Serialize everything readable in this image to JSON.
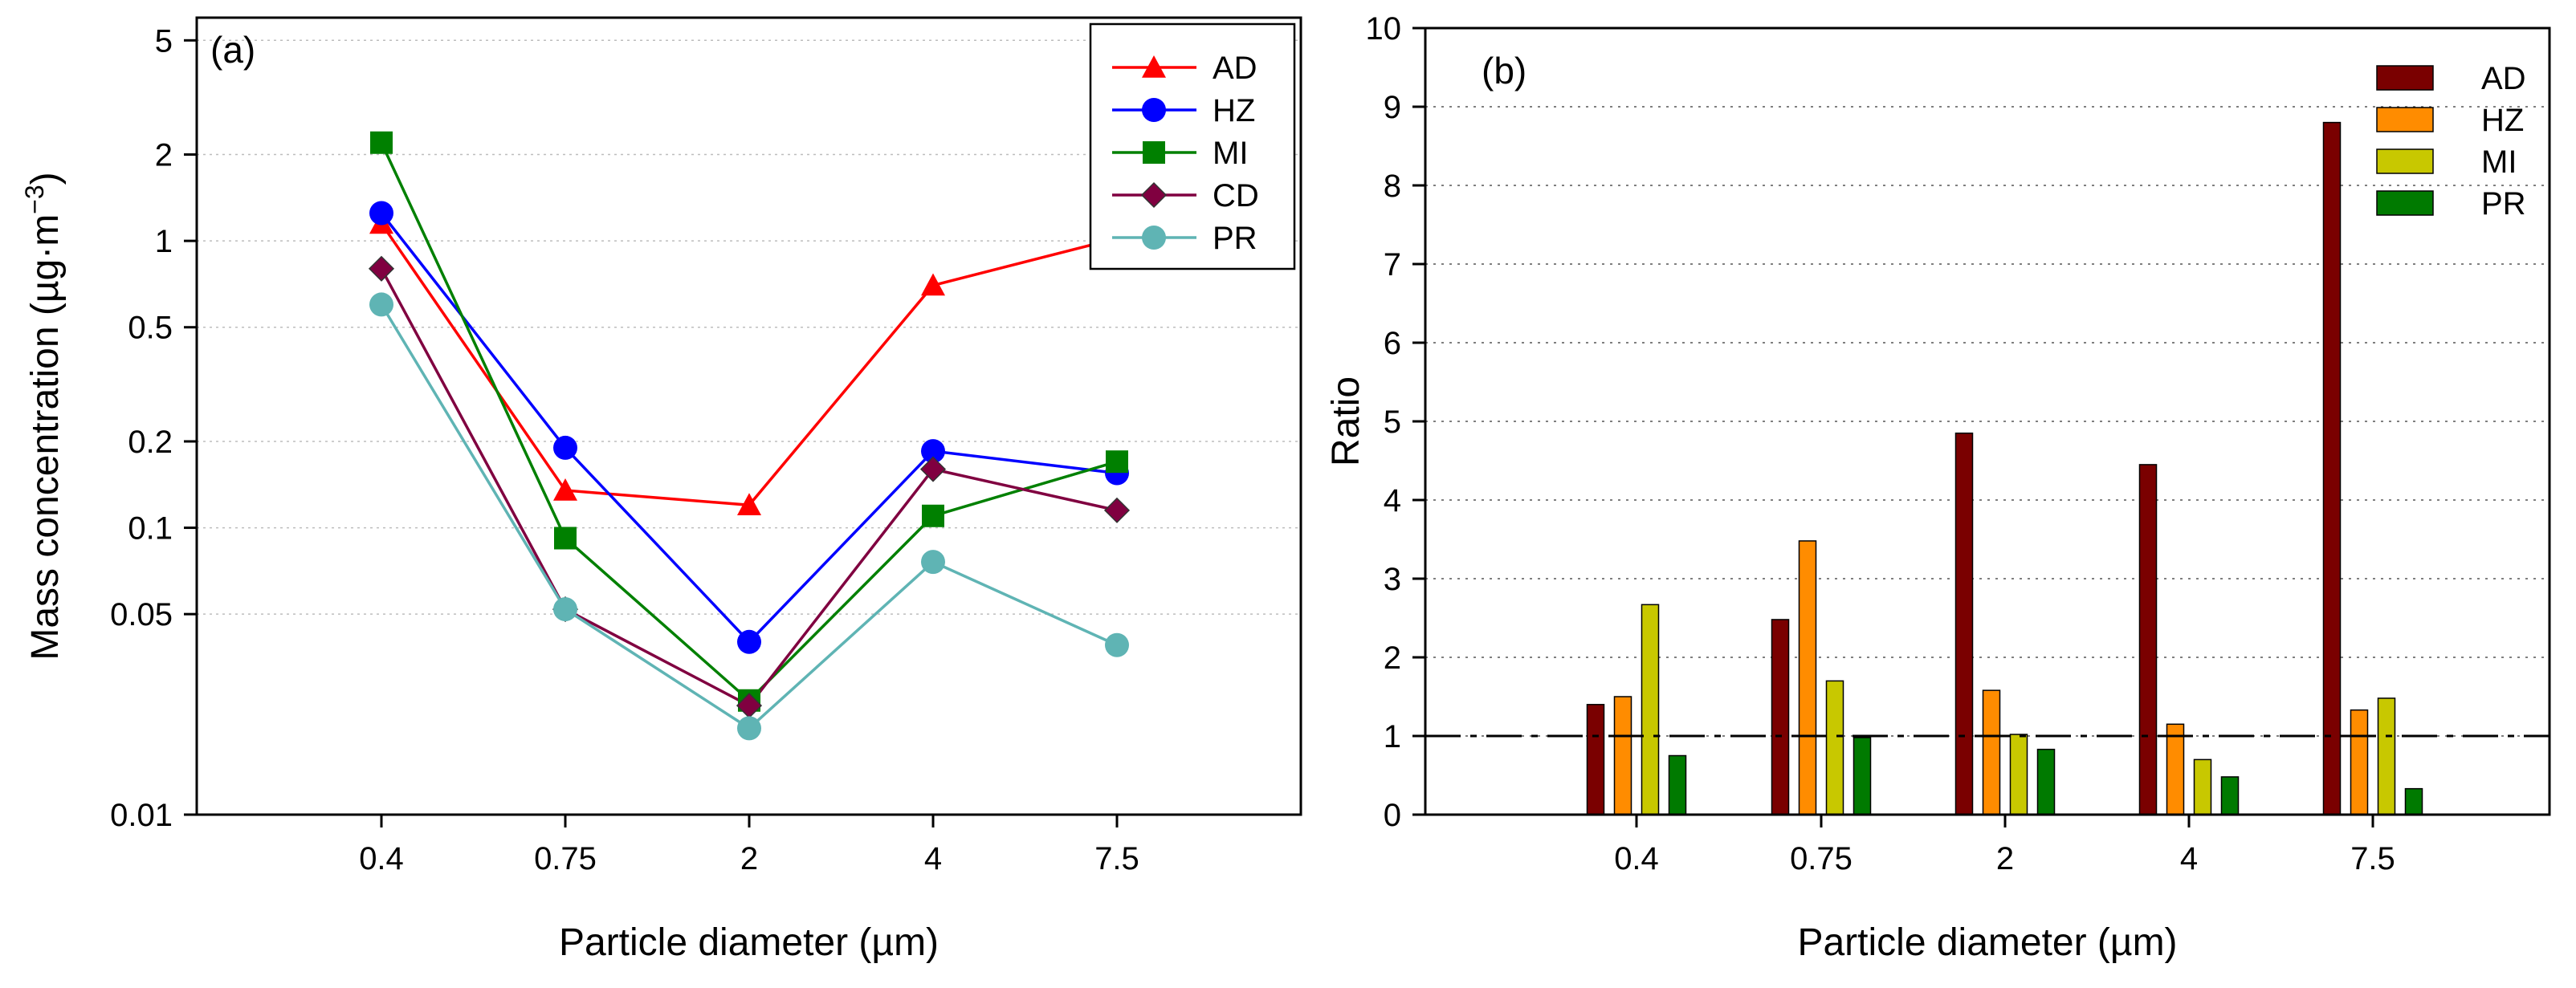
{
  "chart_data": [
    {
      "type": "line",
      "panel_label": "(a)",
      "xlabel": "Particle diameter (µm)",
      "ylabel": "Mass concentration (µg·m",
      "ylabel_superscript": "−3",
      "ylabel_close": ")",
      "yscale": "log",
      "ylim": [
        0.01,
        6
      ],
      "yticks": [
        0.01,
        0.05,
        0.1,
        0.2,
        0.5,
        1,
        2,
        5
      ],
      "ytick_labels": [
        "0.01",
        "0.05",
        "0.1",
        "0.2",
        "0.5",
        "1",
        "2",
        "5"
      ],
      "grid": "horizontal dotted",
      "legend_position": "top-right",
      "categories": [
        "0.4",
        "0.75",
        "2",
        "4",
        "7.5"
      ],
      "series": [
        {
          "name": "AD",
          "color": "#ff0000",
          "marker": "triangle",
          "values": [
            1.15,
            0.135,
            0.12,
            0.7,
            1.02
          ]
        },
        {
          "name": "HZ",
          "color": "#0000ff",
          "marker": "circle",
          "values": [
            1.25,
            0.19,
            0.04,
            0.185,
            0.155
          ]
        },
        {
          "name": "MI",
          "color": "#008000",
          "marker": "square",
          "values": [
            2.2,
            0.092,
            0.025,
            0.11,
            0.17
          ]
        },
        {
          "name": "CD",
          "color": "#800040",
          "marker": "diamond",
          "values": [
            0.8,
            0.052,
            0.024,
            0.16,
            0.115
          ]
        },
        {
          "name": "PR",
          "color": "#5fb4b4",
          "marker": "circle",
          "values": [
            0.6,
            0.052,
            0.02,
            0.076,
            0.039
          ]
        }
      ]
    },
    {
      "type": "bar",
      "panel_label": "(b)",
      "xlabel": "Particle diameter (µm)",
      "ylabel": "Ratio",
      "ylim": [
        0,
        10
      ],
      "yticks": [
        0,
        1,
        2,
        3,
        4,
        5,
        6,
        7,
        8,
        9,
        10
      ],
      "ytick_labels": [
        "0",
        "1",
        "2",
        "3",
        "4",
        "5",
        "6",
        "7",
        "8",
        "9",
        "10"
      ],
      "grid": "horizontal dotted",
      "reference_line": 1,
      "legend_position": "top-right",
      "categories": [
        "0.4",
        "0.75",
        "2",
        "4",
        "7.5"
      ],
      "series": [
        {
          "name": "AD",
          "color": "#7a0000",
          "values": [
            1.4,
            2.48,
            4.85,
            4.45,
            8.8
          ]
        },
        {
          "name": "HZ",
          "color": "#ff8c00",
          "values": [
            1.5,
            3.48,
            1.58,
            1.15,
            1.33
          ]
        },
        {
          "name": "MI",
          "color": "#c8c800",
          "values": [
            2.67,
            1.7,
            1.02,
            0.7,
            1.48
          ]
        },
        {
          "name": "PR",
          "color": "#007a00",
          "values": [
            0.75,
            0.98,
            0.83,
            0.48,
            0.33
          ]
        }
      ]
    }
  ]
}
